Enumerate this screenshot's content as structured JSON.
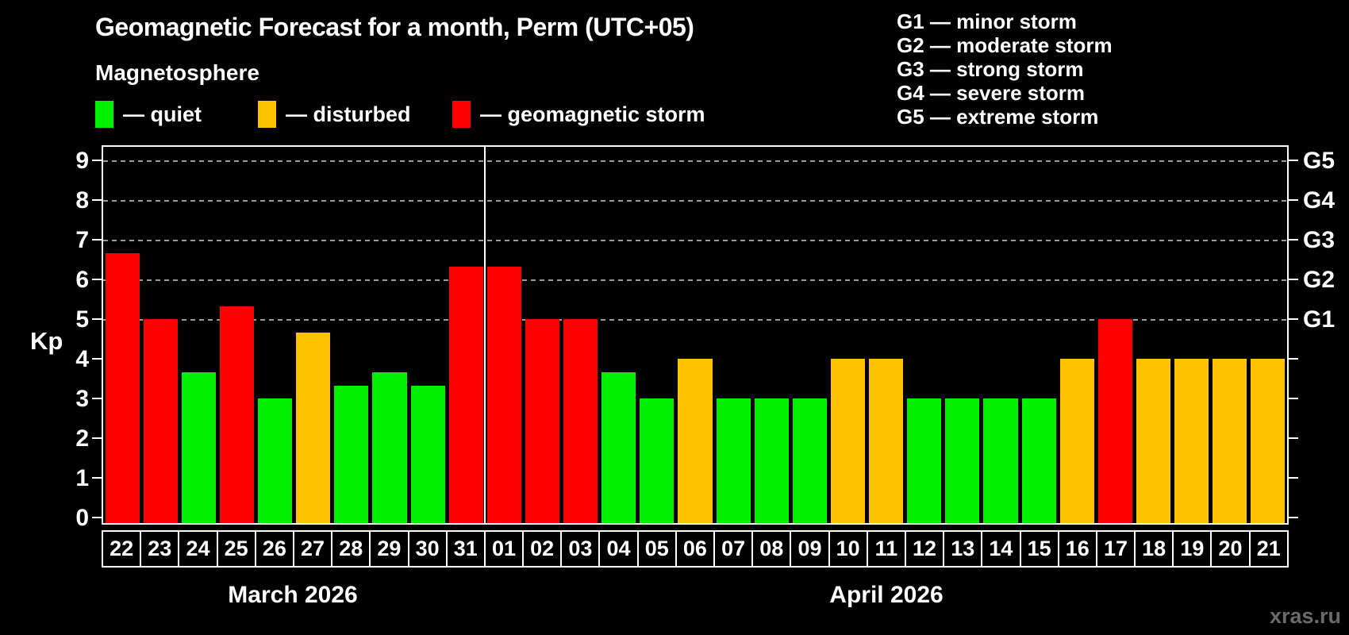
{
  "page": {
    "title": "Geomagnetic Forecast for a month, Perm (UTC+05)",
    "subtitle": "Magnetosphere",
    "watermark": "xras.ru"
  },
  "legend": {
    "items": [
      {
        "key": "quiet",
        "label": "— quiet"
      },
      {
        "key": "disturbed",
        "label": "— disturbed"
      },
      {
        "key": "storm",
        "label": "— geomagnetic storm"
      }
    ]
  },
  "g_legend": {
    "lines": [
      "G1 — minor storm",
      "G2 — moderate storm",
      "G3 — strong storm",
      "G4 — severe storm",
      "G5 — extreme storm"
    ]
  },
  "colors": {
    "background": "#000000",
    "text": "#ffffff",
    "quiet": "#00f000",
    "disturbed": "#ffc200",
    "storm": "#ff0000",
    "axis": "#ffffff",
    "gridline": "#9a9a9a",
    "watermark": "#6a6a6a"
  },
  "chart_data": {
    "type": "bar",
    "title": "Geomagnetic Forecast for a month, Perm (UTC+05)",
    "ylabel": "Kp",
    "ylim": [
      0,
      9.4
    ],
    "y_ticks": [
      0,
      1,
      2,
      3,
      4,
      5,
      6,
      7,
      8,
      9
    ],
    "gridlines_at_kp": [
      5,
      6,
      7,
      8,
      9
    ],
    "grid": "dashed horizontal lines at G-storm levels only",
    "legend_position": "top-left",
    "right_axis": {
      "labels": [
        {
          "kp": 5,
          "label": "G1"
        },
        {
          "kp": 6,
          "label": "G2"
        },
        {
          "kp": 7,
          "label": "G3"
        },
        {
          "kp": 8,
          "label": "G4"
        },
        {
          "kp": 9,
          "label": "G5"
        }
      ]
    },
    "months": [
      {
        "label": "March 2026",
        "day_count": 10
      },
      {
        "label": "April 2026",
        "day_count": 21
      }
    ],
    "categories": [
      "22",
      "23",
      "24",
      "25",
      "26",
      "27",
      "28",
      "29",
      "30",
      "31",
      "01",
      "02",
      "03",
      "04",
      "05",
      "06",
      "07",
      "08",
      "09",
      "10",
      "11",
      "12",
      "13",
      "14",
      "15",
      "16",
      "17",
      "18",
      "19",
      "20",
      "21"
    ],
    "values": [
      6.67,
      5,
      3.67,
      5.33,
      3,
      4.67,
      3.33,
      3.67,
      3.33,
      6.33,
      6.33,
      5,
      5,
      3.67,
      3,
      4,
      3,
      3,
      3,
      4,
      4,
      3,
      3,
      3,
      3,
      4,
      5,
      4,
      4,
      4,
      4
    ],
    "color_rule": {
      "storm_at_or_above": 5,
      "disturbed_at_or_above": 4,
      "quiet_below": 4
    }
  }
}
